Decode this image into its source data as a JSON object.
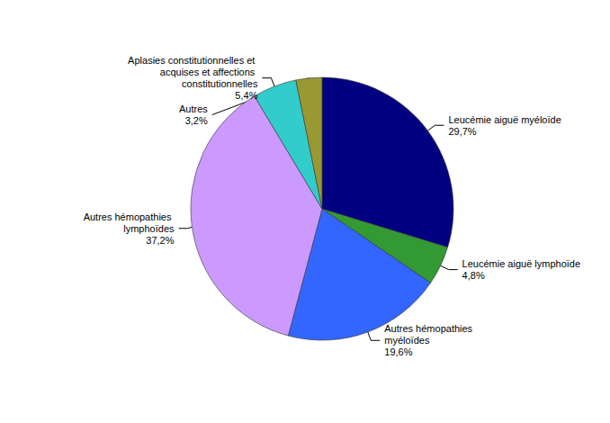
{
  "chart_data": {
    "type": "pie",
    "categories": [
      "Leucémie aiguë myéloïde",
      "Leucémie aiguë lymphoïde",
      "Autres hémopathies myéloïdes",
      "Autres hémopathies lymphoïdes",
      "Aplasies constitutionnelles et acquises et affections constitutionnelles",
      "Autres"
    ],
    "values": [
      29.7,
      4.8,
      19.6,
      37.2,
      5.4,
      3.2
    ],
    "value_labels": [
      "29,7%",
      "4,8%",
      "19,6%",
      "37,2%",
      "5,4%",
      "3,2%"
    ],
    "colors": [
      "#000080",
      "#339933",
      "#3366ff",
      "#cc99ff",
      "#33cccc",
      "#999933"
    ],
    "data_labels": true
  }
}
